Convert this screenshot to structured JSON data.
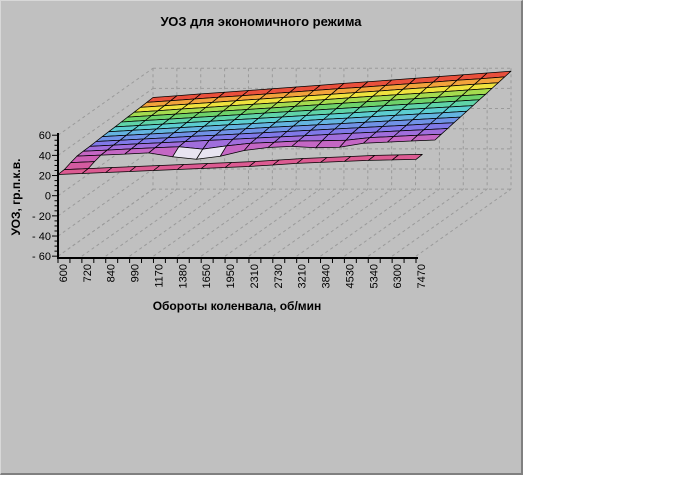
{
  "panel": {
    "background": "#C0C0C0",
    "border_dark": "#808080",
    "border_light": "#D8D8D8"
  },
  "chart_data": {
    "type": "surface",
    "title": "УОЗ для экономичного режима",
    "xlabel": "Обороты коленвала, об/мин",
    "ylabel": "УОЗ, гр.п.к.в.",
    "x_categories": [
      "600",
      "720",
      "840",
      "990",
      "1170",
      "1380",
      "1650",
      "1950",
      "2310",
      "2730",
      "3210",
      "3840",
      "4530",
      "5340",
      "6300",
      "7470"
    ],
    "y_tick_labels": [
      "60",
      "40",
      "20",
      "0",
      "- 20",
      "- 40",
      "- 60"
    ],
    "y_tick_values": [
      60,
      40,
      20,
      0,
      -20,
      -40,
      -60
    ],
    "ylim": [
      -60,
      60
    ],
    "y_minor_unit": 5,
    "grid": {
      "color": "#9A9A9A",
      "dash": "3 3"
    },
    "axis_color": "#000000",
    "underside_color": "#E8E4F1",
    "band_colors": [
      "#DC5B92",
      "#D45BA0",
      "#CC60B4",
      "#C467C4",
      "#A06EDC",
      "#8079E8",
      "#7092E6",
      "#64B4E0",
      "#5CCDD0",
      "#5FD3A8",
      "#6ED26A",
      "#A5DB4F",
      "#EFE23E",
      "#F2A33C",
      "#E9503C"
    ],
    "values": [
      [
        21,
        22,
        23,
        24,
        25,
        26,
        27,
        28,
        29,
        30.5,
        32,
        33,
        34,
        35,
        35.5,
        36
      ],
      [
        21.5,
        22.5,
        23.5,
        24.5,
        25.5,
        26.5,
        27.5,
        28.5,
        29.5,
        31,
        32.5,
        33.5,
        34.5,
        35.5,
        36,
        36.5
      ],
      [
        24,
        25,
        null,
        null,
        null,
        null,
        null,
        null,
        null,
        null,
        null,
        null,
        null,
        null,
        null,
        null
      ],
      [
        26,
        27,
        28,
        29.2,
        25.3,
        22.8,
        25.9,
        31.5,
        34.5,
        35.6,
        34.2,
        34.7,
        38.8,
        39.9,
        41,
        42
      ],
      [
        26.4,
        27.5,
        28.7,
        29.8,
        30.9,
        28.5,
        31.7,
        34.3,
        35.4,
        36.5,
        36.7,
        37.3,
        39.9,
        41,
        42.2,
        43.3
      ],
      [
        26.8,
        28,
        29.2,
        30.3,
        31.5,
        32.7,
        33.9,
        35.1,
        36.2,
        37.4,
        38.6,
        39.8,
        40.9,
        42.1,
        43.3,
        44.5
      ],
      [
        27.2,
        28.4,
        29.7,
        30.9,
        32.2,
        33.4,
        34.6,
        35.9,
        37.1,
        38.4,
        39.6,
        40.8,
        42.1,
        43.3,
        44.6,
        45.8
      ],
      [
        27.6,
        28.9,
        30.2,
        31.5,
        32.8,
        34.1,
        35.4,
        36.7,
        38,
        39.2,
        40.5,
        41.8,
        43.1,
        44.4,
        45.7,
        47
      ],
      [
        28,
        29.4,
        30.7,
        32.1,
        33.4,
        34.8,
        36.1,
        37.5,
        38.8,
        40.2,
        41.5,
        42.9,
        44.2,
        45.6,
        46.9,
        48.3
      ],
      [
        28.4,
        29.8,
        31.2,
        32.6,
        34,
        35.4,
        36.8,
        38.2,
        39.7,
        41.1,
        42.5,
        43.9,
        45.3,
        46.7,
        48.1,
        49.5
      ],
      [
        28.8,
        30.3,
        31.7,
        33.2,
        34.7,
        36.1,
        37.6,
        39.1,
        40.5,
        42,
        43.5,
        44.9,
        46.4,
        47.9,
        49.3,
        50.8
      ],
      [
        29.2,
        30.7,
        32.2,
        33.8,
        35.3,
        36.8,
        38.3,
        39.8,
        41.4,
        42.9,
        44.4,
        45.9,
        47.4,
        49,
        50.5,
        52
      ],
      [
        29.6,
        31.2,
        32.8,
        34.3,
        35.9,
        37.5,
        39.1,
        40.6,
        42.2,
        43.8,
        45.4,
        46.9,
        48.5,
        50.1,
        51.7,
        53.3
      ],
      [
        30,
        31.6,
        33.3,
        34.9,
        36.5,
        38.2,
        39.8,
        41.4,
        43.1,
        44.7,
        46.3,
        48,
        49.6,
        51.2,
        52.9,
        54.5
      ],
      [
        30.5,
        32.2,
        33.9,
        35.6,
        37.2,
        38.9,
        40.6,
        42.3,
        44,
        45.6,
        47.3,
        49,
        50.7,
        52.4,
        54,
        55.8
      ],
      [
        31,
        32.7,
        34.5,
        36.2,
        37.9,
        39.7,
        41.4,
        43.1,
        44.9,
        46.6,
        48.3,
        50.1,
        51.8,
        53.5,
        55.3,
        57
      ]
    ]
  }
}
